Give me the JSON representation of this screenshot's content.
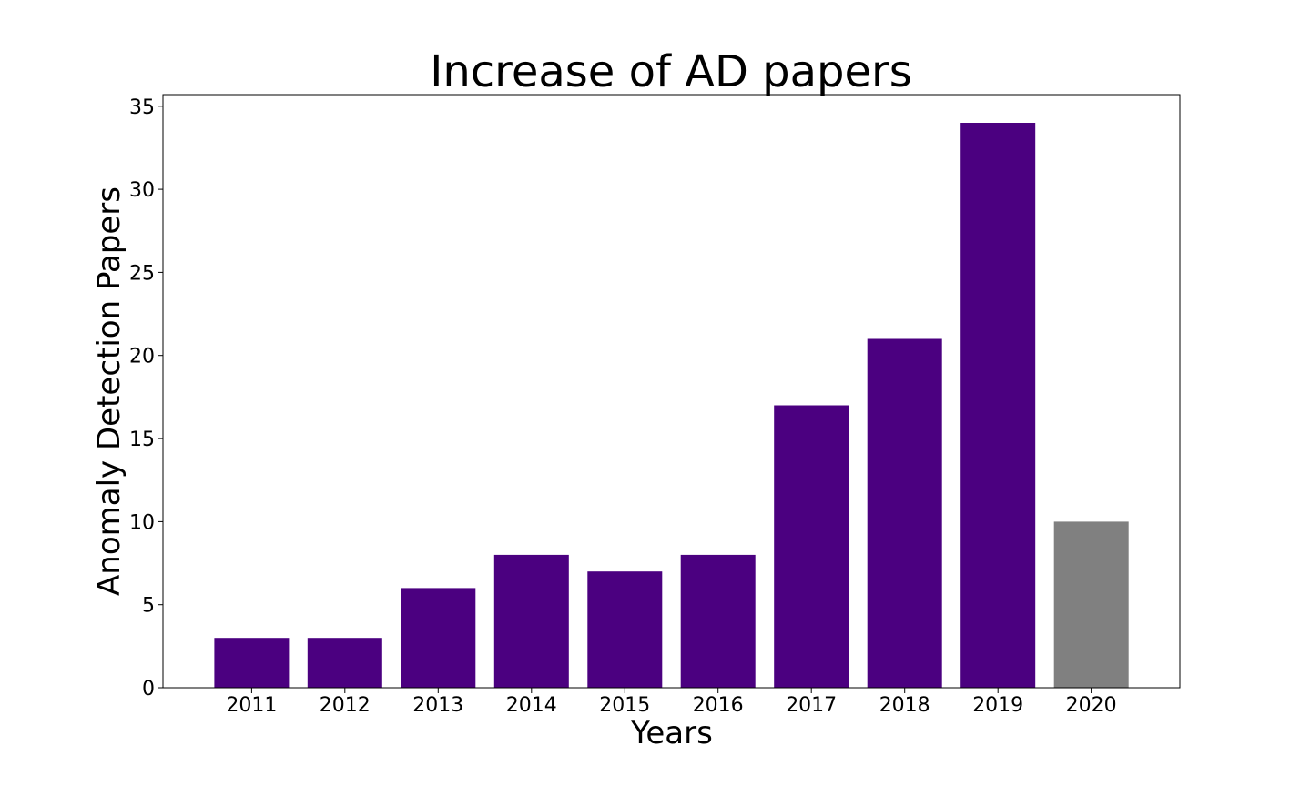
{
  "chart_data": {
    "type": "bar",
    "title": "Increase of AD papers",
    "xlabel": "Years",
    "ylabel": "Anomaly Detection Papers",
    "categories": [
      "2011",
      "2012",
      "2013",
      "2014",
      "2015",
      "2016",
      "2017",
      "2018",
      "2019",
      "2020"
    ],
    "values": [
      3,
      3,
      6,
      8,
      7,
      8,
      17,
      21,
      34,
      10
    ],
    "bar_colors": [
      "#4b0080",
      "#4b0080",
      "#4b0080",
      "#4b0080",
      "#4b0080",
      "#4b0080",
      "#4b0080",
      "#4b0080",
      "#4b0080",
      "#808080"
    ],
    "ylim": [
      0,
      35.7
    ],
    "yticks": [
      0,
      5,
      10,
      15,
      20,
      25,
      30,
      35
    ],
    "grid": false,
    "legend": "none"
  }
}
